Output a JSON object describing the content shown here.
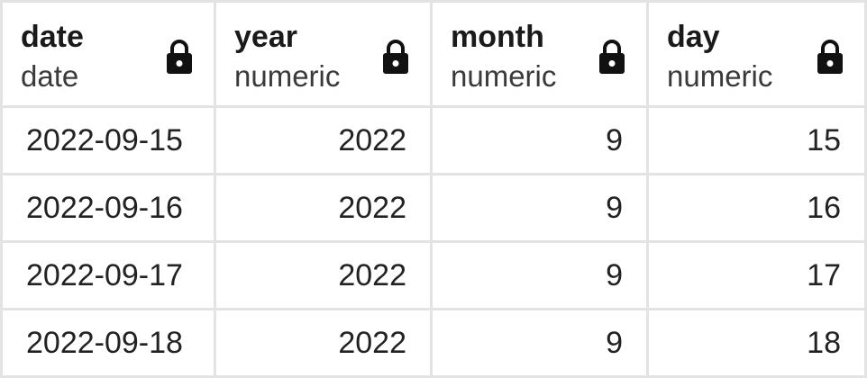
{
  "table": {
    "columns": [
      {
        "name": "date",
        "type": "date",
        "lock_icon": "lock-icon"
      },
      {
        "name": "year",
        "type": "numeric",
        "lock_icon": "lock-icon"
      },
      {
        "name": "month",
        "type": "numeric",
        "lock_icon": "lock-icon"
      },
      {
        "name": "day",
        "type": "numeric",
        "lock_icon": "lock-icon"
      }
    ],
    "rows": [
      [
        "2022-09-15",
        "2022",
        "9",
        "15"
      ],
      [
        "2022-09-16",
        "2022",
        "9",
        "16"
      ],
      [
        "2022-09-17",
        "2022",
        "9",
        "17"
      ],
      [
        "2022-09-18",
        "2022",
        "9",
        "18"
      ]
    ]
  }
}
